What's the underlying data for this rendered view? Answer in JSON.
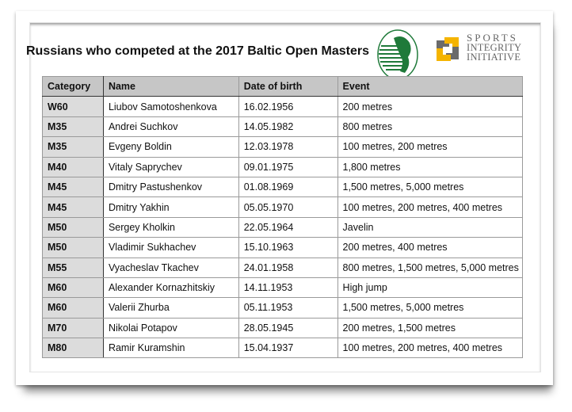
{
  "title": "Russians who competed at the 2017 Baltic Open Masters",
  "logos": {
    "left": "green-athlete-emblem",
    "right": "THE SPORTS INTEGRITY INITIATIVE",
    "right_lines": [
      "SPORTS",
      "INTEGRITY",
      "INITIATIVE"
    ]
  },
  "colors": {
    "header_bg": "#c6c6c6",
    "category_bg": "#dcdcdc",
    "emblem_green": "#1f7a3a",
    "logo_yellow": "#f5b400",
    "logo_gray": "#6b6b6b"
  },
  "table": {
    "headers": [
      "Category",
      "Name",
      "Date of birth",
      "Event"
    ],
    "rows": [
      [
        "W60",
        "Liubov Samotoshenkova",
        "16.02.1956",
        "200 metres"
      ],
      [
        "M35",
        "Andrei Suchkov",
        "14.05.1982",
        "800 metres"
      ],
      [
        "M35",
        "Evgeny Boldin",
        "12.03.1978",
        "100 metres, 200 metres"
      ],
      [
        "M40",
        "Vitaly Saprychev",
        "09.01.1975",
        "1,800 metres"
      ],
      [
        "M45",
        "Dmitry Pastushenkov",
        "01.08.1969",
        "1,500 metres, 5,000 metres"
      ],
      [
        "M45",
        "Dmitry Yakhin",
        "05.05.1970",
        "100 metres, 200 metres, 400 metres"
      ],
      [
        "M50",
        "Sergey Kholkin",
        "22.05.1964",
        "Javelin"
      ],
      [
        "M50",
        "Vladimir Sukhachev",
        "15.10.1963",
        "200 metres, 400 metres"
      ],
      [
        "M55",
        "Vyacheslav Tkachev",
        "24.01.1958",
        "800 metres, 1,500 metres, 5,000 metres"
      ],
      [
        "M60",
        "Alexander Kornazhitskiy",
        "14.11.1953",
        "High jump"
      ],
      [
        "M60",
        "Valerii Zhurba",
        "05.11.1953",
        "1,500 metres, 5,000 metres"
      ],
      [
        "M70",
        "Nikolai Potapov",
        "28.05.1945",
        "200 metres, 1,500 metres"
      ],
      [
        "M80",
        "Ramir Kuramshin",
        "15.04.1937",
        "100 metres, 200 metres, 400 metres"
      ]
    ]
  }
}
